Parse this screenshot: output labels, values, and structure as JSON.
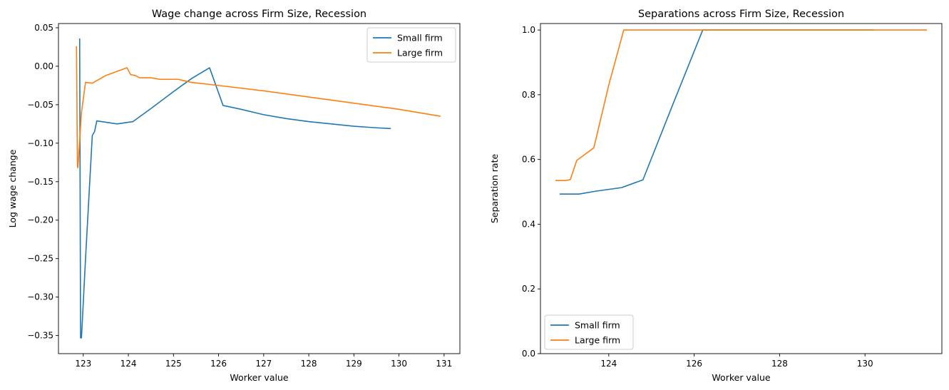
{
  "chart_data": [
    {
      "type": "line",
      "title": "Wage change across Firm Size, Recession",
      "xlabel": "Worker value",
      "ylabel": "Log wage change",
      "xlim": [
        122.45,
        131.35
      ],
      "ylim": [
        -0.3735,
        0.0555
      ],
      "xticks": [
        123,
        124,
        125,
        126,
        127,
        128,
        129,
        130,
        131
      ],
      "yticks": [
        -0.35,
        -0.3,
        -0.25,
        -0.2,
        -0.15,
        -0.1,
        -0.05,
        0.0,
        0.05
      ],
      "ytick_labels": [
        "−0.35",
        "−0.30",
        "−0.25",
        "−0.20",
        "−0.15",
        "−0.10",
        "−0.05",
        "0.00",
        "0.05"
      ],
      "grid": false,
      "legend_position": "top-right",
      "series": [
        {
          "name": "Small firm",
          "color": "#1f77b4",
          "x": [
            122.92,
            122.94,
            122.96,
            123.05,
            123.2,
            123.25,
            123.3,
            123.75,
            124.1,
            124.5,
            125.0,
            125.4,
            125.8,
            126.1,
            126.5,
            127.0,
            127.5,
            128.0,
            128.5,
            129.0,
            129.5,
            129.82
          ],
          "y": [
            0.036,
            -0.353,
            -0.353,
            -0.25,
            -0.09,
            -0.085,
            -0.071,
            -0.075,
            -0.072,
            -0.055,
            -0.033,
            -0.016,
            -0.002,
            -0.051,
            -0.056,
            -0.063,
            -0.068,
            -0.072,
            -0.075,
            -0.078,
            -0.08,
            -0.081
          ]
        },
        {
          "name": "Large firm",
          "color": "#ff7f0e",
          "x": [
            122.85,
            122.87,
            122.88,
            122.9,
            122.96,
            123.05,
            123.2,
            123.5,
            123.97,
            124.05,
            124.15,
            124.25,
            124.5,
            124.7,
            125.1,
            125.4,
            126.0,
            127.0,
            128.0,
            129.0,
            130.0,
            130.92
          ],
          "y": [
            0.026,
            -0.13,
            -0.132,
            -0.115,
            -0.06,
            -0.021,
            -0.022,
            -0.012,
            -0.002,
            -0.011,
            -0.012,
            -0.015,
            -0.015,
            -0.017,
            -0.017,
            -0.021,
            -0.025,
            -0.032,
            -0.04,
            -0.048,
            -0.056,
            -0.065
          ]
        }
      ]
    },
    {
      "type": "line",
      "title": "Separations across Firm Size, Recession",
      "xlabel": "Worker value",
      "ylabel": "Separation rate",
      "xlim": [
        122.4,
        131.8
      ],
      "ylim": [
        0.0,
        1.02
      ],
      "xticks": [
        124,
        126,
        128,
        130
      ],
      "yticks": [
        0.0,
        0.2,
        0.4,
        0.6,
        0.8,
        1.0
      ],
      "ytick_labels": [
        "0.0",
        "0.2",
        "0.4",
        "0.6",
        "0.8",
        "1.0"
      ],
      "grid": false,
      "legend_position": "bottom-left",
      "series": [
        {
          "name": "Small firm",
          "color": "#1f77b4",
          "x": [
            122.85,
            123.3,
            123.7,
            124.3,
            124.8,
            125.5,
            126.2,
            128.0,
            130.2
          ],
          "y": [
            0.493,
            0.493,
            0.502,
            0.513,
            0.537,
            0.77,
            1.0,
            1.0,
            1.0
          ]
        },
        {
          "name": "Large firm",
          "color": "#ff7f0e",
          "x": [
            122.75,
            123.0,
            123.1,
            123.25,
            123.65,
            124.0,
            124.35,
            126.0,
            128.0,
            131.45
          ],
          "y": [
            0.535,
            0.535,
            0.538,
            0.597,
            0.636,
            0.83,
            1.0,
            1.0,
            1.0,
            1.0
          ]
        }
      ]
    }
  ]
}
